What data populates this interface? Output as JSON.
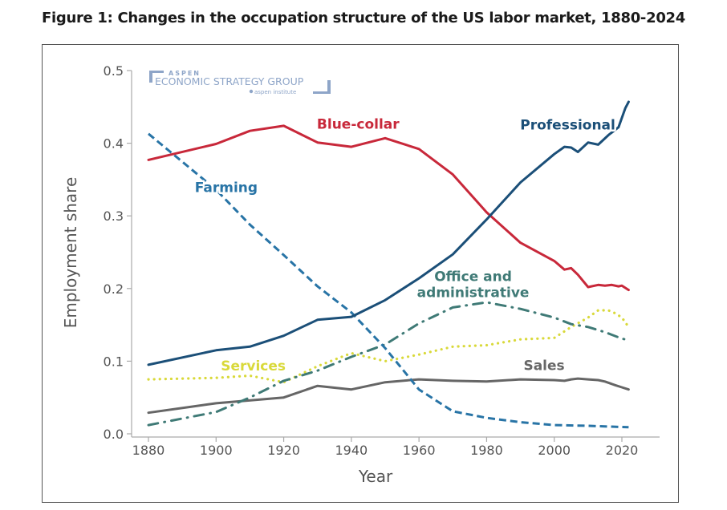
{
  "figure_title": "Figure 1: Changes in the occupation structure of the US labor market, 1880-2024",
  "logo": {
    "line1": "ASPEN",
    "line2": "ECONOMIC STRATEGY GROUP",
    "line3": "aspen institute",
    "color": "#8ea5c8"
  },
  "chart_data": {
    "type": "line",
    "title": "Figure 1: Changes in the occupation structure of the US labor market, 1880-2024",
    "xlabel": "Year",
    "ylabel": "Employment share",
    "xlim": [
      1874,
      2033
    ],
    "ylim": [
      0,
      0.5
    ],
    "xticks": [
      1880,
      1900,
      1920,
      1940,
      1960,
      1980,
      2000,
      2020
    ],
    "xtick_labels": [
      "1880",
      "1900",
      "1920",
      "1940",
      "1960",
      "1980",
      "2000",
      "2020"
    ],
    "yticks": [
      0.0,
      0.1,
      0.2,
      0.3,
      0.4,
      0.5
    ],
    "ytick_labels": [
      "0.0",
      "0.1",
      "0.2",
      "0.3",
      "0.4",
      "0.5"
    ],
    "grid": false,
    "legend": "inline labels",
    "series": [
      {
        "name": "Blue-collar",
        "color": "#c8283a",
        "style": "solid",
        "label_at": [
          1942,
          0.42
        ],
        "x": [
          1880,
          1900,
          1910,
          1920,
          1930,
          1940,
          1950,
          1960,
          1970,
          1980,
          1990,
          2000,
          2003,
          2005,
          2007,
          2010,
          2013,
          2015,
          2017,
          2019,
          2020,
          2022
        ],
        "values": [
          0.377,
          0.399,
          0.417,
          0.424,
          0.401,
          0.395,
          0.407,
          0.392,
          0.357,
          0.305,
          0.263,
          0.238,
          0.226,
          0.228,
          0.219,
          0.202,
          0.205,
          0.204,
          0.205,
          0.203,
          0.204,
          0.198
        ]
      },
      {
        "name": "Professional",
        "color": "#1b4f78",
        "style": "solid",
        "label_at": [
          2004,
          0.419
        ],
        "x": [
          1880,
          1900,
          1910,
          1920,
          1930,
          1940,
          1950,
          1960,
          1970,
          1980,
          1990,
          2000,
          2003,
          2005,
          2007,
          2010,
          2013,
          2016,
          2019,
          2021,
          2022
        ],
        "values": [
          0.095,
          0.115,
          0.12,
          0.135,
          0.157,
          0.161,
          0.184,
          0.214,
          0.247,
          0.295,
          0.346,
          0.385,
          0.395,
          0.394,
          0.388,
          0.401,
          0.398,
          0.411,
          0.422,
          0.448,
          0.457
        ]
      },
      {
        "name": "Farming",
        "color": "#2874a6",
        "style": "dashed",
        "label_at": [
          1903,
          0.333
        ],
        "x": [
          1880,
          1900,
          1910,
          1920,
          1930,
          1940,
          1950,
          1960,
          1970,
          1980,
          1990,
          2000,
          2010,
          2022
        ],
        "values": [
          0.413,
          0.336,
          0.288,
          0.246,
          0.203,
          0.167,
          0.118,
          0.061,
          0.031,
          0.022,
          0.016,
          0.012,
          0.011,
          0.009
        ]
      },
      {
        "name": "Office and administrative",
        "color": "#3f7a76",
        "style": "dashdot",
        "label_at": [
          1976,
          0.21
        ],
        "label_lines": [
          "Office and",
          "administrative"
        ],
        "x": [
          1880,
          1900,
          1910,
          1920,
          1930,
          1940,
          1950,
          1960,
          1970,
          1980,
          1990,
          2000,
          2005,
          2010,
          2015,
          2020,
          2022
        ],
        "values": [
          0.012,
          0.03,
          0.05,
          0.073,
          0.087,
          0.106,
          0.123,
          0.152,
          0.174,
          0.181,
          0.172,
          0.16,
          0.151,
          0.147,
          0.14,
          0.131,
          0.129
        ]
      },
      {
        "name": "Services",
        "color": "#d9d93a",
        "style": "dotted",
        "label_at": [
          1911,
          0.087
        ],
        "x": [
          1880,
          1900,
          1910,
          1920,
          1930,
          1940,
          1950,
          1960,
          1970,
          1980,
          1990,
          2000,
          2005,
          2010,
          2013,
          2016,
          2018,
          2020,
          2022
        ],
        "values": [
          0.075,
          0.077,
          0.08,
          0.071,
          0.093,
          0.111,
          0.1,
          0.109,
          0.12,
          0.122,
          0.13,
          0.132,
          0.147,
          0.16,
          0.17,
          0.17,
          0.166,
          0.16,
          0.147
        ]
      },
      {
        "name": "Sales",
        "color": "#666666",
        "style": "solid",
        "label_at": [
          1997,
          0.088
        ],
        "x": [
          1880,
          1900,
          1920,
          1930,
          1940,
          1950,
          1960,
          1970,
          1980,
          1990,
          2000,
          2003,
          2005,
          2007,
          2010,
          2013,
          2015,
          2018,
          2020,
          2022
        ],
        "values": [
          0.029,
          0.042,
          0.05,
          0.066,
          0.061,
          0.071,
          0.075,
          0.073,
          0.072,
          0.075,
          0.074,
          0.073,
          0.075,
          0.076,
          0.075,
          0.074,
          0.072,
          0.067,
          0.064,
          0.061
        ]
      }
    ]
  }
}
